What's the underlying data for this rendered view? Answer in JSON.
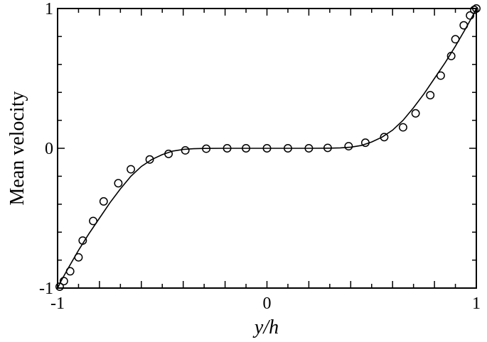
{
  "chart_data": {
    "type": "line",
    "title": "",
    "xlabel": "y/h",
    "ylabel": "Mean velocity",
    "xlim": [
      -1,
      1
    ],
    "ylim": [
      -1,
      1
    ],
    "xticks": [
      -1,
      0,
      1
    ],
    "yticks": [
      -1,
      0,
      1
    ],
    "xtick_labels": [
      "-1",
      "0",
      "1"
    ],
    "ytick_labels": [
      "-1",
      "0",
      "1"
    ],
    "grid": false,
    "series": [
      {
        "style": "solid-line",
        "x": [
          -1.0,
          -0.98,
          -0.95,
          -0.9,
          -0.85,
          -0.8,
          -0.75,
          -0.7,
          -0.65,
          -0.6,
          -0.55,
          -0.5,
          -0.45,
          -0.4,
          -0.35,
          -0.3,
          -0.2,
          -0.1,
          0.0,
          0.1,
          0.2,
          0.3,
          0.35,
          0.4,
          0.45,
          0.5,
          0.55,
          0.6,
          0.65,
          0.7,
          0.75,
          0.8,
          0.85,
          0.9,
          0.95,
          0.98,
          1.0
        ],
        "y": [
          -1.0,
          -0.94,
          -0.86,
          -0.73,
          -0.61,
          -0.5,
          -0.39,
          -0.29,
          -0.2,
          -0.13,
          -0.08,
          -0.045,
          -0.02,
          -0.008,
          -0.003,
          -0.001,
          0.0,
          0.0,
          0.0,
          0.0,
          0.0,
          0.001,
          0.003,
          0.008,
          0.02,
          0.045,
          0.08,
          0.13,
          0.2,
          0.29,
          0.39,
          0.5,
          0.61,
          0.73,
          0.86,
          0.94,
          1.0
        ]
      },
      {
        "style": "open-circle-markers",
        "x": [
          -0.99,
          -0.97,
          -0.94,
          -0.9,
          -0.88,
          -0.83,
          -0.78,
          -0.71,
          -0.65,
          -0.56,
          -0.47,
          -0.39,
          -0.29,
          -0.19,
          -0.1,
          0.0,
          0.1,
          0.2,
          0.29,
          0.39,
          0.47,
          0.56,
          0.65,
          0.71,
          0.78,
          0.83,
          0.88,
          0.9,
          0.94,
          0.97,
          0.99,
          1.0
        ],
        "y": [
          -0.99,
          -0.95,
          -0.88,
          -0.78,
          -0.66,
          -0.52,
          -0.38,
          -0.25,
          -0.15,
          -0.08,
          -0.04,
          -0.015,
          -0.003,
          0.0,
          0.0,
          0.0,
          0.0,
          0.0,
          0.003,
          0.015,
          0.04,
          0.08,
          0.15,
          0.25,
          0.38,
          0.52,
          0.66,
          0.78,
          0.88,
          0.95,
          0.99,
          1.0
        ]
      }
    ]
  }
}
